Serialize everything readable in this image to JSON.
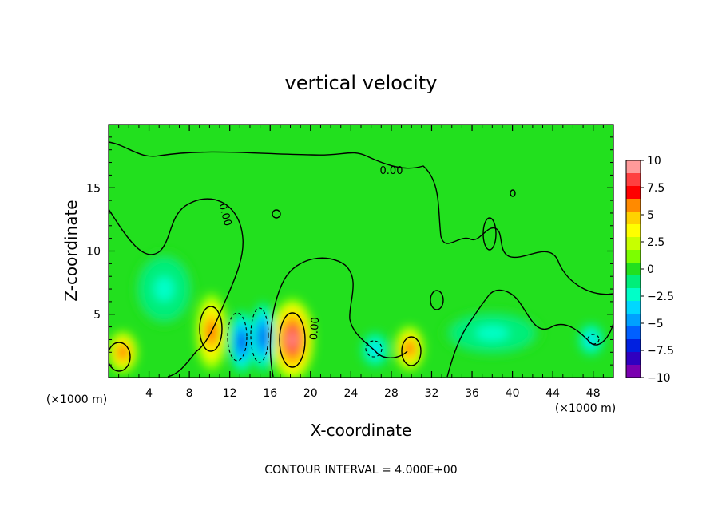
{
  "chart_data": {
    "type": "heatmap",
    "title": "vertical velocity",
    "xlabel": "X-coordinate",
    "ylabel": "Z-coordinate",
    "x_unit_left": "(×1000 m)",
    "x_unit_right": "(×1000 m)",
    "xlim": [
      0,
      50
    ],
    "ylim": [
      0,
      20
    ],
    "x_ticks": [
      "4",
      "8",
      "12",
      "16",
      "20",
      "24",
      "28",
      "32",
      "36",
      "40",
      "44",
      "48"
    ],
    "y_ticks": [
      "5",
      "10",
      "15"
    ],
    "x_tick_values": [
      4,
      8,
      12,
      16,
      20,
      24,
      28,
      32,
      36,
      40,
      44,
      48
    ],
    "y_tick_values": [
      5,
      10,
      15
    ],
    "colorbar": {
      "labels": [
        "10",
        "7.5",
        "5",
        "2.5",
        "0",
        "−2.5",
        "−5",
        "−7.5",
        "−10"
      ],
      "values": [
        10,
        7.5,
        5,
        2.5,
        0,
        -2.5,
        -5,
        -7.5,
        -10
      ],
      "colors": [
        "#ff9a9a",
        "#ff4040",
        "#ff0000",
        "#ff8a00",
        "#ffd200",
        "#ffff00",
        "#c8ff00",
        "#7cff00",
        "#22e01e",
        "#00ee7a",
        "#00ffc8",
        "#00d8ff",
        "#00a0ff",
        "#0060ff",
        "#0020e0",
        "#3000c0",
        "#7a00b0"
      ]
    },
    "contour_interval": "CONTOUR INTERVAL = 4.000E+00",
    "contour_labels": [
      "0.00",
      "0.00",
      "0.00"
    ],
    "features": [
      {
        "x": 1.4,
        "z": 2.0,
        "w": 8,
        "rx": 1.5,
        "rz": 1.7
      },
      {
        "x": 10.2,
        "z": 3.6,
        "w": 8,
        "rx": 1.6,
        "rz": 3.1
      },
      {
        "x": 18.2,
        "z": 3.0,
        "w": 10,
        "rx": 2.2,
        "rz": 3.3
      },
      {
        "x": 29.8,
        "z": 2.3,
        "w": 7,
        "rx": 1.5,
        "rz": 1.8
      },
      {
        "x": 13.2,
        "z": 2.8,
        "w": -8,
        "rx": 1.3,
        "rz": 2.5
      },
      {
        "x": 15.3,
        "z": 3.2,
        "w": -7,
        "rx": 1.2,
        "rz": 2.8
      },
      {
        "x": 26.4,
        "z": 2.2,
        "w": -4,
        "rx": 1.4,
        "rz": 1.4
      },
      {
        "x": 47.8,
        "z": 3.0,
        "w": -4,
        "rx": 1.3,
        "rz": 1.3
      },
      {
        "x": 5.5,
        "z": 7.0,
        "w": -2.5,
        "rx": 3.0,
        "rz": 3.0
      },
      {
        "x": 38.0,
        "z": 3.5,
        "w": -2.5,
        "rx": 5.0,
        "rz": 1.8
      }
    ]
  }
}
